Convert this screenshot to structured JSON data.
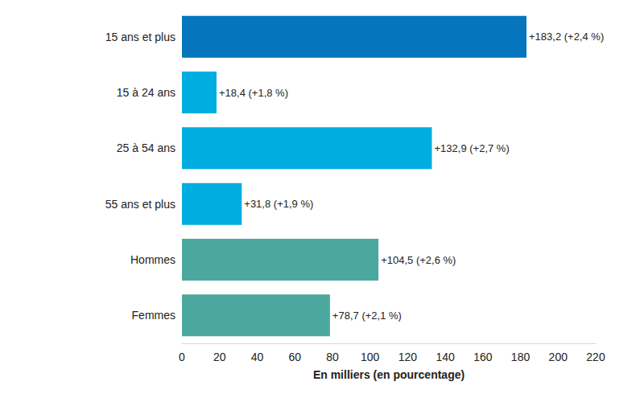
{
  "chart_data": {
    "type": "bar",
    "orientation": "horizontal",
    "categories": [
      "15 ans et plus",
      "15 à 24 ans",
      "25 à 54 ans",
      "55 ans et plus",
      "Hommes",
      "Femmes"
    ],
    "values": [
      183.2,
      18.4,
      132.9,
      31.8,
      104.5,
      78.7
    ],
    "value_labels": [
      "+183,2 (+2,4 %)",
      "+18,4 (+1,8 %)",
      "+132,9 (+2,7 %)",
      "+31,8 (+1,9 %)",
      "+104,5 (+2,6 %)",
      "+78,7 (+2,1 %)"
    ],
    "colors": [
      "#0576bd",
      "#00ade0",
      "#00ade0",
      "#00ade0",
      "#4ba89f",
      "#4ba89f"
    ],
    "data_labels": true,
    "xlabel": "En milliers (en pourcentage)",
    "xlim": [
      0,
      220
    ],
    "xticks": [
      0,
      20,
      40,
      60,
      80,
      100,
      120,
      140,
      160,
      180,
      200,
      220
    ],
    "grid": false
  }
}
